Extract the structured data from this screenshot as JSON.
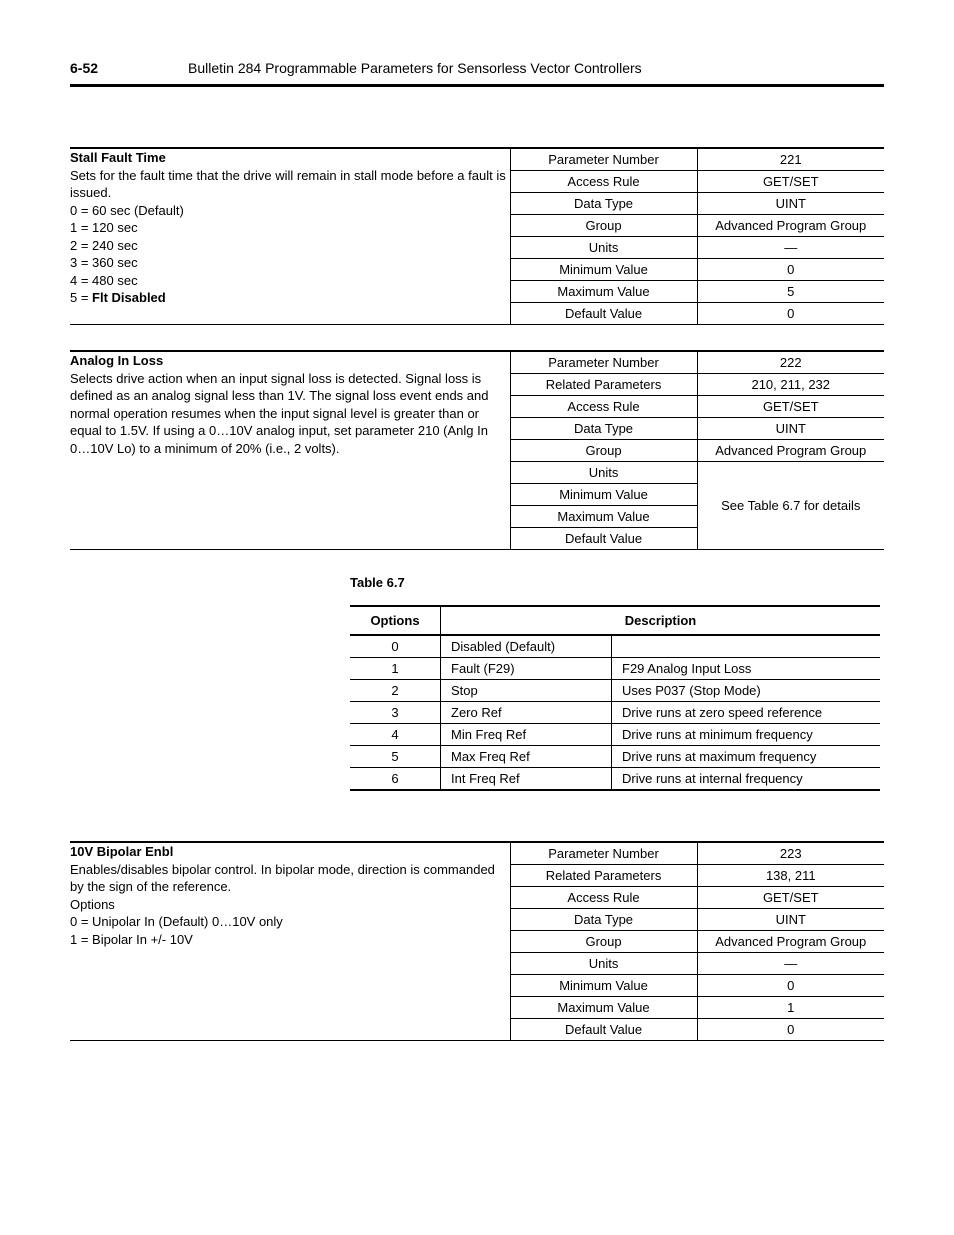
{
  "header": {
    "page_number": "6-52",
    "title": "Bulletin 284 Programmable Parameters for Sensorless Vector Controllers"
  },
  "param1": {
    "title": "Stall Fault Time",
    "desc": "Sets for the fault time that the drive will remain in stall mode before a fault is issued.",
    "line0": "0 = 60 sec (Default)",
    "line1": "1 = 120 sec",
    "line2": "2 = 240 sec",
    "line3": "3 = 360 sec",
    "line4": "4 = 480 sec",
    "line5a": "5 = ",
    "line5b": "Flt Disabled",
    "attrs": {
      "r0k": "Parameter Number",
      "r0v": "221",
      "r1k": "Access Rule",
      "r1v": "GET/SET",
      "r2k": "Data Type",
      "r2v": "UINT",
      "r3k": "Group",
      "r3v": "Advanced Program Group",
      "r4k": "Units",
      "r4v": "—",
      "r5k": "Minimum Value",
      "r5v": "0",
      "r6k": "Maximum Value",
      "r6v": "5",
      "r7k": "Default Value",
      "r7v": "0"
    }
  },
  "param2": {
    "title": "Analog In Loss",
    "desc": "Selects drive action when an input signal loss is detected. Signal loss is defined as an analog signal less than 1V. The signal loss event ends and normal operation resumes when the input signal level is greater than or equal to 1.5V. If using a 0…10V analog input, set parameter 210 (Anlg In 0…10V Lo) to a minimum of 20% (i.e., 2 volts).",
    "attrs": {
      "r0k": "Parameter Number",
      "r0v": "222",
      "r1k": "Related Parameters",
      "r1v": "210, 211, 232",
      "r2k": "Access Rule",
      "r2v": "GET/SET",
      "r3k": "Data Type",
      "r3v": "UINT",
      "r4k": "Group",
      "r4v": "Advanced Program Group",
      "r5k": "Units",
      "r6k": "Minimum Value",
      "r7k": "Maximum Value",
      "r8k": "Default Value",
      "mergedv": "See Table 6.7 for details"
    }
  },
  "table67": {
    "caption": "Table 6.7",
    "head_opt": "Options",
    "head_desc": "Description",
    "rows": {
      "r0o": "0",
      "r0d1": "Disabled (Default)",
      "r0d2": "",
      "r1o": "1",
      "r1d1": "Fault (F29)",
      "r1d2": "F29 Analog Input Loss",
      "r2o": "2",
      "r2d1": "Stop",
      "r2d2": "Uses P037 (Stop Mode)",
      "r3o": "3",
      "r3d1": "Zero Ref",
      "r3d2": "Drive runs at zero speed reference",
      "r4o": "4",
      "r4d1": "Min Freq Ref",
      "r4d2": "Drive runs at minimum frequency",
      "r5o": "5",
      "r5d1": "Max Freq Ref",
      "r5d2": "Drive runs at maximum frequency",
      "r6o": "6",
      "r6d1": "Int Freq Ref",
      "r6d2": "Drive runs at internal frequency"
    }
  },
  "param3": {
    "title": "10V Bipolar Enbl",
    "desc": "Enables/disables bipolar control. In bipolar mode, direction is commanded by the sign of the reference.",
    "opts_label": "Options",
    "line0": "0 = Unipolar In (Default) 0…10V only",
    "line1": "1 = Bipolar In +/- 10V",
    "attrs": {
      "r0k": "Parameter Number",
      "r0v": "223",
      "r1k": "Related Parameters",
      "r1v": "138, 211",
      "r2k": "Access Rule",
      "r2v": "GET/SET",
      "r3k": "Data Type",
      "r3v": "UINT",
      "r4k": "Group",
      "r4v": "Advanced Program Group",
      "r5k": "Units",
      "r5v": "—",
      "r6k": "Minimum Value",
      "r6v": "0",
      "r7k": "Maximum Value",
      "r7v": "1",
      "r8k": "Default Value",
      "r8v": "0"
    }
  }
}
